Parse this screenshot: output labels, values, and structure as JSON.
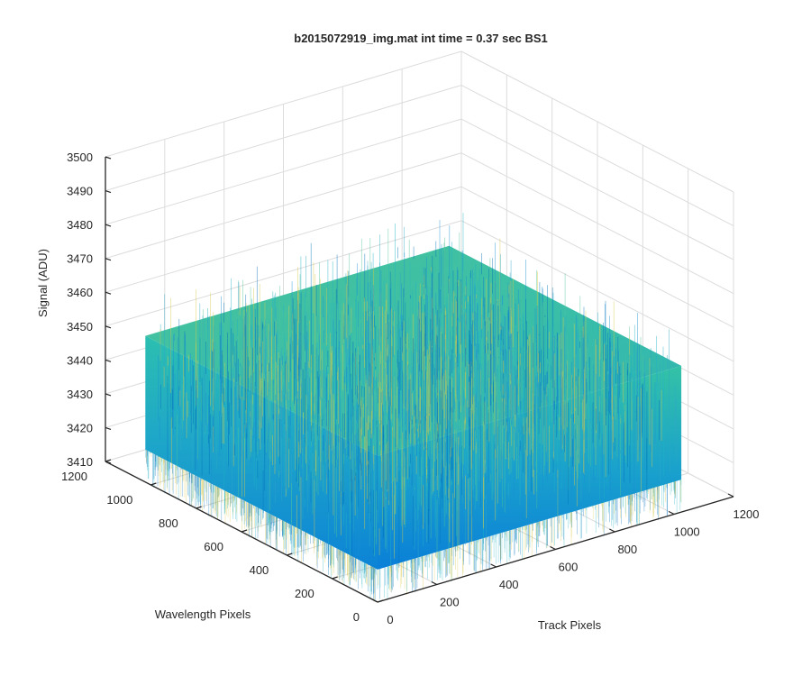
{
  "chart_data": {
    "type": "surface",
    "title": "b2015072919_img.mat int time = 0.37 sec   BS1",
    "xlabel": "Track Pixels",
    "ylabel": "Wavelength Pixels",
    "zlabel": "Signal (ADU)",
    "xlim": [
      0,
      1200
    ],
    "ylim": [
      0,
      1200
    ],
    "zlim": [
      3410,
      3500
    ],
    "xticks": [
      "0",
      "200",
      "400",
      "600",
      "800",
      "1000",
      "1200"
    ],
    "yticks": [
      "0",
      "200",
      "400",
      "600",
      "800",
      "1000",
      "1200"
    ],
    "zticks": [
      "3410",
      "3420",
      "3430",
      "3440",
      "3450",
      "3460",
      "3470",
      "3480",
      "3490",
      "3500"
    ],
    "grid": true,
    "colormap": "parula",
    "data_extent": {
      "x": [
        0,
        1024
      ],
      "y": [
        0,
        1024
      ],
      "z_mean": 3440,
      "z_range": [
        3415,
        3480
      ]
    },
    "colors": {
      "low": "#0072bd",
      "mid": "#1fb3c6",
      "high": "#d9c94a"
    }
  }
}
